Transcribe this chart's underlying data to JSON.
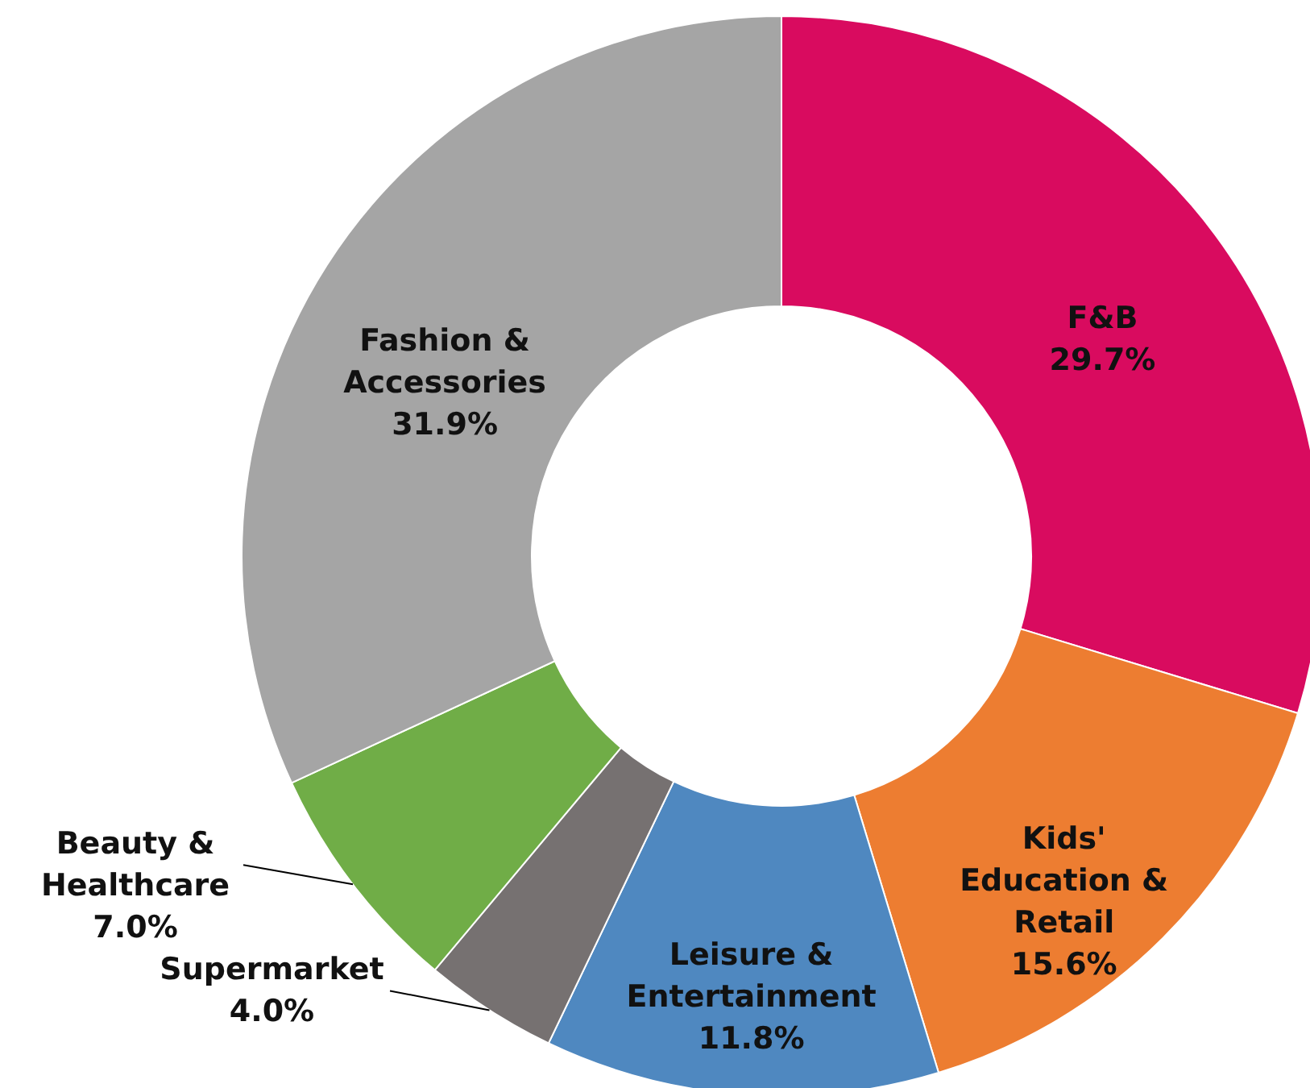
{
  "chart_data": {
    "type": "donut",
    "categories": [
      "F&B",
      "Kids' Education & Retail",
      "Leisure & Entertainment",
      "Supermarket",
      "Beauty & Healthcare",
      "Fashion & Accessories"
    ],
    "values": [
      29.7,
      15.6,
      11.8,
      4.0,
      7.0,
      31.9
    ],
    "value_labels": [
      "29.7%",
      "15.6%",
      "11.8%",
      "4.0%",
      "7.0%",
      "31.9%"
    ],
    "colors": [
      "#d90b5f",
      "#ed7d31",
      "#4f88c0",
      "#767171",
      "#70ad47",
      "#a5a5a5"
    ]
  }
}
